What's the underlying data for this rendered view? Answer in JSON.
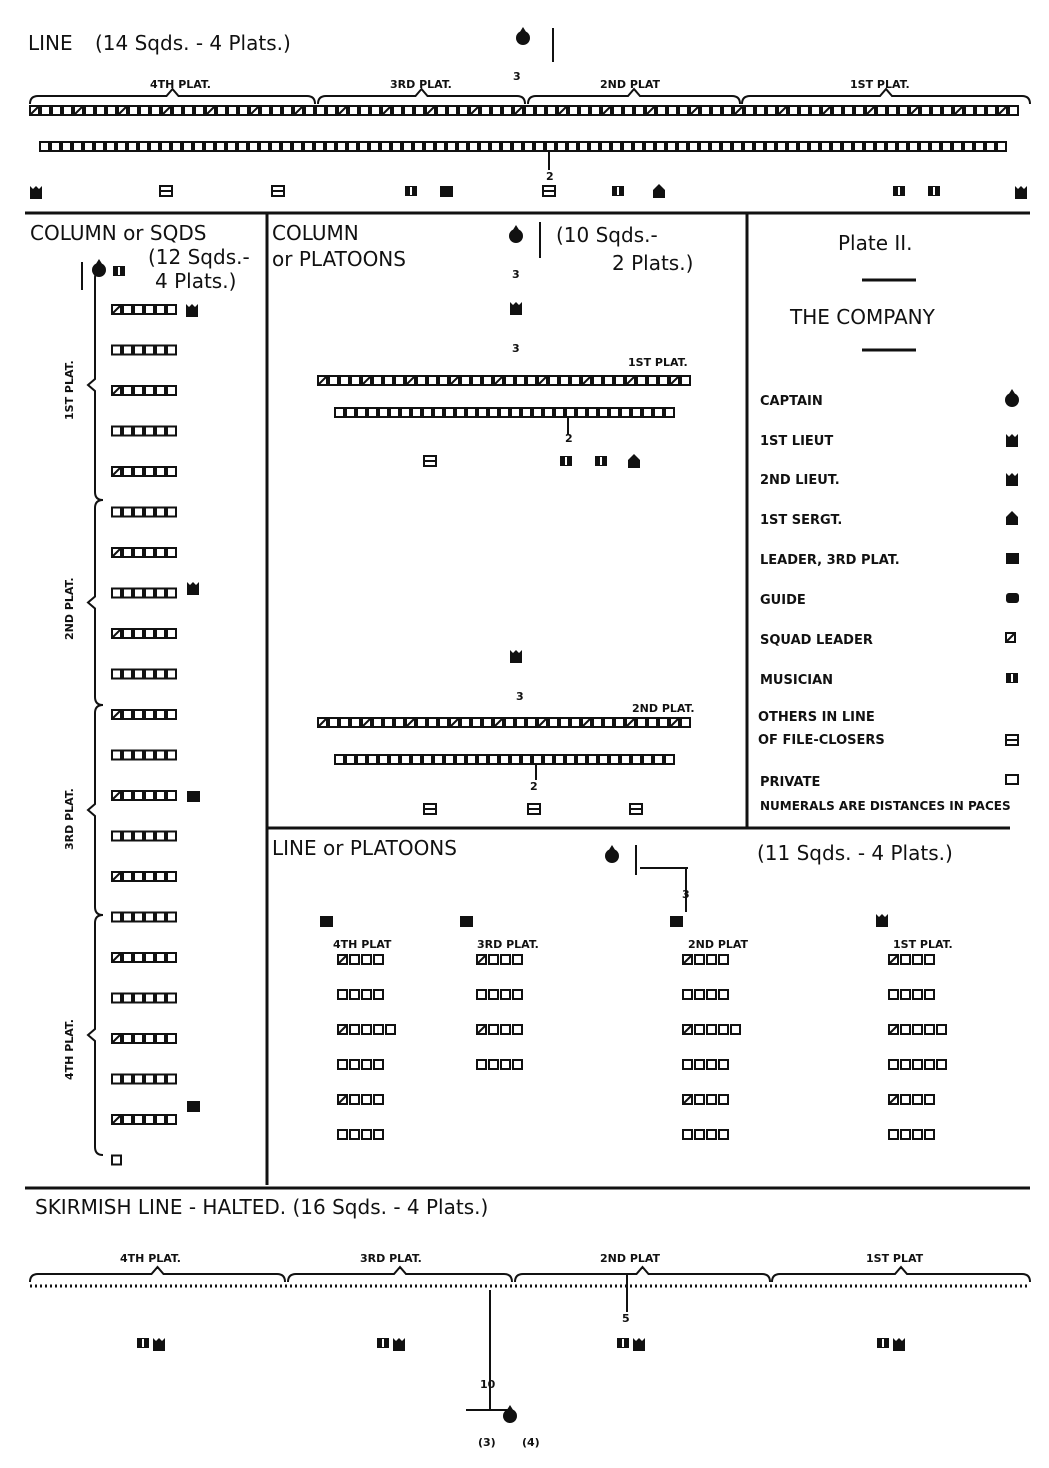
{
  "line": {
    "title": "LINE",
    "subtitle": "(14 Sqds. - 4 Plats.)",
    "plats": [
      "4TH PLAT.",
      "3RD PLAT.",
      "2ND PLAT",
      "1ST PLAT."
    ],
    "dist_front": "3",
    "dist_rear": "2"
  },
  "column_squads": {
    "title": "COLUMN or SQDS",
    "subtitle": [
      "(12 Sqds.-",
      "4 Plats.)"
    ],
    "plats": [
      "1ST PLAT.",
      "2ND PLAT.",
      "3RD PLAT.",
      "4TH PLAT."
    ]
  },
  "column_platoons": {
    "title": [
      "COLUMN",
      "or PLATOONS"
    ],
    "subtitle": [
      "(10 Sqds.-",
      "2 Plats.)"
    ],
    "plats": [
      "1ST PLAT.",
      "2ND PLAT."
    ],
    "dists": [
      "3",
      "3",
      "2",
      "3",
      "2"
    ]
  },
  "legend": {
    "plate": "Plate II.",
    "title": "THE COMPANY",
    "items": [
      {
        "label": "CAPTAIN",
        "icon": "captain-icon"
      },
      {
        "label": "1ST LIEUT",
        "icon": "first-lieut-icon"
      },
      {
        "label": "2ND LIEUT.",
        "icon": "second-lieut-icon"
      },
      {
        "label": "1ST SERGT.",
        "icon": "first-sergt-icon"
      },
      {
        "label": "LEADER, 3RD PLAT.",
        "icon": "leader-icon"
      },
      {
        "label": "GUIDE",
        "icon": "guide-icon"
      },
      {
        "label": "SQUAD LEADER",
        "icon": "squad-leader-icon"
      },
      {
        "label": "MUSICIAN",
        "icon": "musician-icon"
      },
      {
        "label": "OTHERS IN LINE OF FILE-CLOSERS",
        "icon": "file-closer-icon"
      },
      {
        "label": "PRIVATE",
        "icon": "private-icon"
      }
    ],
    "note": "NUMERALS ARE DISTANCES IN PACES"
  },
  "line_platoons": {
    "title": "LINE or PLATOONS",
    "subtitle": "(11 Sqds. - 4 Plats.)",
    "plats": [
      "4TH PLAT",
      "3RD PLAT.",
      "2ND PLAT",
      "1ST PLAT."
    ],
    "dist": "3"
  },
  "skirmish": {
    "title": "SKIRMISH LINE - HALTED. (16 Sqds. - 4 Plats.)",
    "plats": [
      "4TH PLAT.",
      "3RD PLAT.",
      "2ND PLAT",
      "1ST PLAT"
    ],
    "dists": [
      "5",
      "10"
    ],
    "markers": [
      "(3)",
      "(4)"
    ]
  }
}
